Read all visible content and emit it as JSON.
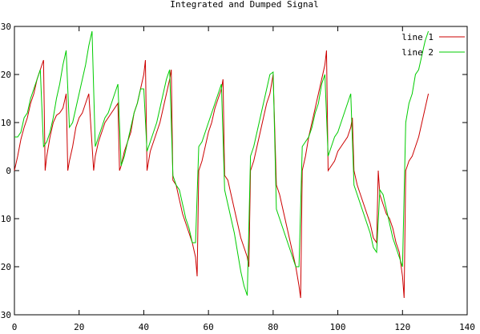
{
  "chart_data": {
    "type": "line",
    "title": "Integrated and Dumped Signal",
    "xlabel": "",
    "ylabel": "",
    "xlim": [
      0,
      140
    ],
    "ylim": [
      -30,
      30
    ],
    "x_ticks": [
      0,
      20,
      40,
      60,
      80,
      100,
      120,
      140
    ],
    "y_ticks": [
      30,
      20,
      10,
      0,
      -10,
      -20,
      -30
    ],
    "x_tick_labels": [
      "0",
      "20",
      "40",
      "60",
      "80",
      "100",
      "120",
      "140"
    ],
    "y_tick_labels": [
      "30",
      "20",
      "10",
      "0",
      "10",
      "20",
      "30"
    ],
    "grid": false,
    "legend": "top-right",
    "series": [
      {
        "name": "line 1",
        "color": "#cc0000",
        "points": [
          [
            0,
            0
          ],
          [
            1,
            3
          ],
          [
            2,
            6.5
          ],
          [
            3,
            9
          ],
          [
            4,
            11
          ],
          [
            5,
            14
          ],
          [
            6,
            16
          ],
          [
            7,
            19
          ],
          [
            8,
            21
          ],
          [
            9,
            23
          ],
          [
            9.5,
            0
          ],
          [
            10,
            3
          ],
          [
            11,
            7
          ],
          [
            12,
            10
          ],
          [
            13,
            11.5
          ],
          [
            14,
            12
          ],
          [
            15,
            13
          ],
          [
            16,
            16
          ],
          [
            16.5,
            0
          ],
          [
            17,
            2
          ],
          [
            18,
            5
          ],
          [
            19,
            9
          ],
          [
            20,
            11
          ],
          [
            21,
            12
          ],
          [
            22,
            14
          ],
          [
            23,
            16
          ],
          [
            24.5,
            0
          ],
          [
            25,
            3
          ],
          [
            26,
            6
          ],
          [
            27,
            8
          ],
          [
            28,
            10
          ],
          [
            29,
            11
          ],
          [
            30,
            12
          ],
          [
            31,
            13
          ],
          [
            32,
            14
          ],
          [
            32.5,
            0
          ],
          [
            33,
            1
          ],
          [
            34,
            4
          ],
          [
            35,
            6
          ],
          [
            36,
            8
          ],
          [
            37,
            12
          ],
          [
            38,
            14
          ],
          [
            39,
            17
          ],
          [
            40,
            20
          ],
          [
            40.5,
            23
          ],
          [
            41,
            0
          ],
          [
            42,
            4
          ],
          [
            43,
            6
          ],
          [
            44,
            8
          ],
          [
            45,
            10
          ],
          [
            46,
            13
          ],
          [
            47,
            16
          ],
          [
            48,
            19
          ],
          [
            48.5,
            21
          ],
          [
            49,
            -2
          ],
          [
            50,
            -3
          ],
          [
            51,
            -6
          ],
          [
            52,
            -9
          ],
          [
            53,
            -11
          ],
          [
            54,
            -13
          ],
          [
            55,
            -15
          ],
          [
            56,
            -18
          ],
          [
            56.5,
            -22
          ],
          [
            57,
            0
          ],
          [
            58,
            2
          ],
          [
            59,
            5
          ],
          [
            60,
            8
          ],
          [
            61,
            10
          ],
          [
            62,
            13
          ],
          [
            63,
            15
          ],
          [
            64,
            17
          ],
          [
            64.5,
            19
          ],
          [
            65,
            -1
          ],
          [
            66,
            -2
          ],
          [
            67,
            -5
          ],
          [
            68,
            -8
          ],
          [
            69,
            -11
          ],
          [
            70,
            -14
          ],
          [
            71,
            -16
          ],
          [
            72,
            -18
          ],
          [
            72.5,
            -20
          ],
          [
            73,
            0
          ],
          [
            74,
            2
          ],
          [
            75,
            5
          ],
          [
            76,
            8
          ],
          [
            77,
            11
          ],
          [
            78,
            14
          ],
          [
            79,
            16
          ],
          [
            80,
            20
          ],
          [
            81,
            -3
          ],
          [
            82,
            -5
          ],
          [
            83,
            -8
          ],
          [
            84,
            -11
          ],
          [
            85,
            -14
          ],
          [
            86,
            -17
          ],
          [
            87,
            -20
          ],
          [
            88,
            -24
          ],
          [
            88.5,
            -26.5
          ],
          [
            89,
            0
          ],
          [
            90,
            3
          ],
          [
            91,
            7
          ],
          [
            92,
            10
          ],
          [
            93,
            13
          ],
          [
            94,
            16
          ],
          [
            95,
            19
          ],
          [
            96,
            22
          ],
          [
            96.5,
            25
          ],
          [
            97,
            0
          ],
          [
            98,
            1
          ],
          [
            99,
            2
          ],
          [
            100,
            4
          ],
          [
            101,
            5
          ],
          [
            102,
            6
          ],
          [
            103,
            7
          ],
          [
            104,
            9
          ],
          [
            104.5,
            11
          ],
          [
            105,
            0
          ],
          [
            106,
            -3
          ],
          [
            107,
            -5
          ],
          [
            108,
            -7
          ],
          [
            109,
            -9
          ],
          [
            110,
            -11
          ],
          [
            111,
            -14
          ],
          [
            112,
            -15
          ],
          [
            112.5,
            0
          ],
          [
            113,
            -5
          ],
          [
            114,
            -7
          ],
          [
            115,
            -9
          ],
          [
            116,
            -10
          ],
          [
            117,
            -12
          ],
          [
            118,
            -15
          ],
          [
            119,
            -17
          ],
          [
            120,
            -22
          ],
          [
            120.5,
            -26.5
          ],
          [
            121,
            0
          ],
          [
            122,
            2
          ],
          [
            123,
            3
          ],
          [
            124,
            5
          ],
          [
            125,
            7
          ],
          [
            126,
            10
          ],
          [
            127,
            13
          ],
          [
            128,
            16
          ]
        ]
      },
      {
        "name": "line 2",
        "color": "#00cc00",
        "points": [
          [
            0,
            7
          ],
          [
            1,
            7
          ],
          [
            2,
            8
          ],
          [
            3,
            11
          ],
          [
            4,
            12
          ],
          [
            5,
            15
          ],
          [
            6,
            17
          ],
          [
            7,
            19
          ],
          [
            8,
            21
          ],
          [
            9,
            5
          ],
          [
            10,
            6
          ],
          [
            11,
            8
          ],
          [
            12,
            11
          ],
          [
            13,
            15
          ],
          [
            14,
            18
          ],
          [
            15,
            22
          ],
          [
            16,
            25
          ],
          [
            17,
            9
          ],
          [
            18,
            10
          ],
          [
            19,
            13
          ],
          [
            20,
            16
          ],
          [
            21,
            19
          ],
          [
            22,
            22
          ],
          [
            23,
            26
          ],
          [
            24,
            29
          ],
          [
            25,
            5
          ],
          [
            26,
            7
          ],
          [
            27,
            9
          ],
          [
            28,
            11
          ],
          [
            29,
            12
          ],
          [
            30,
            14
          ],
          [
            31,
            16
          ],
          [
            32,
            18
          ],
          [
            33,
            1
          ],
          [
            34,
            3
          ],
          [
            35,
            6
          ],
          [
            36,
            9
          ],
          [
            37,
            12
          ],
          [
            38,
            14
          ],
          [
            39,
            17
          ],
          [
            40,
            17
          ],
          [
            41,
            4
          ],
          [
            42,
            6
          ],
          [
            43,
            8
          ],
          [
            44,
            10
          ],
          [
            45,
            13
          ],
          [
            46,
            16
          ],
          [
            47,
            19
          ],
          [
            48,
            21
          ],
          [
            49,
            -1
          ],
          [
            50,
            -3
          ],
          [
            51,
            -4
          ],
          [
            52,
            -7
          ],
          [
            53,
            -10
          ],
          [
            54,
            -12
          ],
          [
            55,
            -15
          ],
          [
            56,
            -15
          ],
          [
            57,
            5
          ],
          [
            58,
            6
          ],
          [
            59,
            8
          ],
          [
            60,
            10
          ],
          [
            61,
            12
          ],
          [
            62,
            14
          ],
          [
            63,
            16
          ],
          [
            64,
            18
          ],
          [
            65,
            -4
          ],
          [
            66,
            -7
          ],
          [
            67,
            -10
          ],
          [
            68,
            -13
          ],
          [
            69,
            -17
          ],
          [
            70,
            -21
          ],
          [
            71,
            -24
          ],
          [
            72,
            -26
          ],
          [
            73,
            3
          ],
          [
            74,
            5
          ],
          [
            75,
            8
          ],
          [
            76,
            11
          ],
          [
            77,
            14
          ],
          [
            78,
            17
          ],
          [
            79,
            20
          ],
          [
            80,
            20.5
          ],
          [
            81,
            -8
          ],
          [
            82,
            -10
          ],
          [
            83,
            -12
          ],
          [
            84,
            -14
          ],
          [
            85,
            -16
          ],
          [
            86,
            -18
          ],
          [
            87,
            -20
          ],
          [
            88,
            -20
          ],
          [
            89,
            5
          ],
          [
            90,
            6
          ],
          [
            91,
            7
          ],
          [
            92,
            9
          ],
          [
            93,
            12
          ],
          [
            94,
            14
          ],
          [
            95,
            18
          ],
          [
            96,
            20
          ],
          [
            97,
            3
          ],
          [
            98,
            5
          ],
          [
            99,
            7
          ],
          [
            100,
            8
          ],
          [
            101,
            10
          ],
          [
            102,
            12
          ],
          [
            103,
            14
          ],
          [
            104,
            16
          ],
          [
            105,
            -3
          ],
          [
            106,
            -5
          ],
          [
            107,
            -7
          ],
          [
            108,
            -9
          ],
          [
            109,
            -11
          ],
          [
            110,
            -13
          ],
          [
            111,
            -16
          ],
          [
            112,
            -17
          ],
          [
            113,
            -4
          ],
          [
            114,
            -5
          ],
          [
            115,
            -8
          ],
          [
            116,
            -11
          ],
          [
            117,
            -14
          ],
          [
            118,
            -16
          ],
          [
            119,
            -18
          ],
          [
            120,
            -20
          ],
          [
            121,
            10
          ],
          [
            122,
            14
          ],
          [
            123,
            16
          ],
          [
            124,
            20
          ],
          [
            125,
            21
          ],
          [
            126,
            24
          ],
          [
            127,
            27
          ],
          [
            128,
            29
          ]
        ]
      }
    ]
  }
}
